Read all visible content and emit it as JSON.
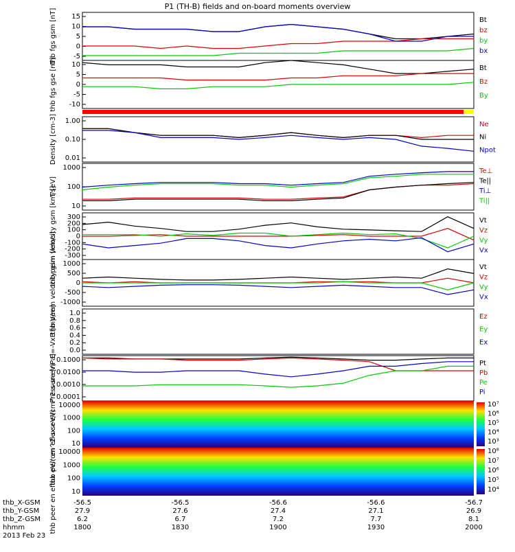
{
  "title": "P1 (TH-B) fields and on-board moments overview",
  "date": "2013 Feb 23",
  "footer": {
    "rows": [
      {
        "label": "thb_X-GSM",
        "values": [
          "-56.5",
          "-56.5",
          "-56.6",
          "-56.6",
          "-56.7"
        ]
      },
      {
        "label": "thb_Y-GSM",
        "values": [
          "27.9",
          "27.6",
          "27.4",
          "27.1",
          "26.9"
        ]
      },
      {
        "label": "thb_Z-GSM",
        "values": [
          "6.2",
          "6.7",
          "7.2",
          "7.7",
          "8.1"
        ]
      },
      {
        "label": "hhmm",
        "values": [
          "1800",
          "1830",
          "1900",
          "1930",
          "2000"
        ]
      }
    ]
  },
  "chart_data": [
    {
      "id": "fgs_gsm",
      "type": "line",
      "ylabel": "thb fgs gsm [nT]",
      "ylim": [
        -5,
        15
      ],
      "ticks": [
        "15",
        "10",
        "5",
        "0",
        "-5"
      ],
      "x": "18:00-20:00",
      "series": [
        {
          "name": "Bt",
          "color": "#000000",
          "values": [
            9,
            9,
            8,
            8,
            8,
            7,
            7,
            9,
            10,
            9,
            8,
            6,
            4,
            4,
            5,
            6
          ]
        },
        {
          "name": "bz",
          "color": "#dd0000",
          "values": [
            1,
            1,
            1,
            0,
            1,
            0,
            0,
            1,
            2,
            2,
            3,
            3,
            3,
            4,
            4,
            4
          ]
        },
        {
          "name": "by",
          "color": "#00cc00",
          "values": [
            -3,
            -3,
            -3,
            -3,
            -3,
            -3,
            -2,
            -2,
            -2,
            -2,
            -1,
            -1,
            -1,
            -1,
            -1,
            0
          ]
        },
        {
          "name": "bx",
          "color": "#0000cc",
          "values": [
            9,
            9,
            8,
            8,
            8,
            7,
            7,
            9,
            10,
            9,
            8,
            6,
            3,
            3,
            5,
            5
          ]
        }
      ]
    },
    {
      "id": "fgs_gse",
      "type": "line",
      "ylabel": "thb fgs gse [nT]",
      "ylim": [
        -12,
        10
      ],
      "ticks": [
        "10",
        "5",
        "0",
        "-5",
        "-10"
      ],
      "series": [
        {
          "name": "Bt",
          "color": "#000000",
          "values": [
            9,
            8,
            8,
            8,
            7,
            7,
            7,
            9,
            10,
            9,
            8,
            6,
            4,
            4,
            5,
            6
          ]
        },
        {
          "name": "Bz",
          "color": "#dd0000",
          "values": [
            2,
            2,
            2,
            2,
            1,
            1,
            1,
            1,
            2,
            2,
            3,
            3,
            3,
            4,
            4,
            4
          ]
        },
        {
          "name": "By",
          "color": "#00cc00",
          "values": [
            -2,
            -2,
            -2,
            -3,
            -3,
            -2,
            -2,
            -2,
            -1,
            -1,
            -1,
            -1,
            -1,
            -1,
            -1,
            0
          ]
        }
      ]
    },
    {
      "id": "density",
      "type": "line",
      "ylabel": "Density [cm-3]",
      "ylim": [
        0.01,
        1
      ],
      "log": true,
      "ticks": [
        "1.00",
        "0.10",
        "0.01"
      ],
      "series": [
        {
          "name": "Ne",
          "color": "#dd0000",
          "values": [
            0.3,
            0.3,
            0.2,
            0.15,
            0.15,
            0.15,
            0.12,
            0.15,
            0.2,
            0.15,
            0.12,
            0.15,
            0.15,
            0.12,
            0.15,
            0.15
          ]
        },
        {
          "name": "Ni",
          "color": "#000000",
          "values": [
            0.3,
            0.3,
            0.2,
            0.15,
            0.15,
            0.15,
            0.12,
            0.15,
            0.2,
            0.15,
            0.12,
            0.15,
            0.15,
            0.1,
            0.1,
            0.1
          ]
        },
        {
          "name": "Npot",
          "color": "#0000cc",
          "values": [
            0.25,
            0.25,
            0.2,
            0.12,
            0.12,
            0.12,
            0.1,
            0.12,
            0.15,
            0.12,
            0.1,
            0.12,
            0.1,
            0.05,
            0.04,
            0.03
          ]
        }
      ]
    },
    {
      "id": "temperature",
      "type": "line",
      "ylabel": "T [eV]",
      "ylim": [
        10,
        10000
      ],
      "log": true,
      "ticks": [
        "1000",
        "100",
        "10"
      ],
      "series": [
        {
          "name": "Te⊥",
          "color": "#dd0000",
          "values": [
            50,
            50,
            60,
            60,
            60,
            60,
            60,
            50,
            50,
            60,
            70,
            200,
            300,
            400,
            400,
            500
          ]
        },
        {
          "name": "Te||",
          "color": "#000000",
          "values": [
            40,
            40,
            50,
            50,
            50,
            50,
            50,
            40,
            40,
            50,
            60,
            200,
            300,
            400,
            500,
            600
          ]
        },
        {
          "name": "Ti⊥",
          "color": "#0000cc",
          "values": [
            300,
            400,
            500,
            600,
            600,
            600,
            500,
            500,
            400,
            500,
            600,
            1500,
            2000,
            2500,
            3000,
            3000
          ]
        },
        {
          "name": "Ti||",
          "color": "#00cc00",
          "values": [
            200,
            300,
            400,
            500,
            500,
            500,
            400,
            400,
            300,
            400,
            500,
            1200,
            1500,
            2000,
            2000,
            2000
          ]
        }
      ]
    },
    {
      "id": "peim_velocity",
      "type": "line",
      "ylabel": "thb peim velocity gsm [km/s]",
      "ylim": [
        -300,
        300
      ],
      "ticks": [
        "300",
        "200",
        "100",
        "0",
        "-100",
        "-200",
        "-300"
      ],
      "series": [
        {
          "name": "Vt",
          "color": "#000000",
          "values": [
            150,
            180,
            130,
            100,
            60,
            60,
            90,
            140,
            170,
            120,
            90,
            80,
            70,
            60,
            250,
            100
          ]
        },
        {
          "name": "Vz",
          "color": "#dd0000",
          "values": [
            0,
            0,
            10,
            20,
            0,
            0,
            0,
            0,
            0,
            10,
            20,
            0,
            0,
            0,
            100,
            -50
          ]
        },
        {
          "name": "Vy",
          "color": "#00cc00",
          "values": [
            20,
            20,
            20,
            0,
            30,
            10,
            40,
            40,
            0,
            20,
            40,
            20,
            30,
            -30,
            -150,
            0
          ]
        },
        {
          "name": "Vx",
          "color": "#0000cc",
          "values": [
            -100,
            -150,
            -120,
            -90,
            -30,
            -30,
            -60,
            -120,
            -150,
            -100,
            -60,
            -40,
            -60,
            -20,
            -200,
            -100
          ]
        }
      ]
    },
    {
      "id": "peem_velocity",
      "type": "line",
      "ylabel": "thb peem velocity gsm [km/s]",
      "ylim": [
        -1000,
        1000
      ],
      "ticks": [
        "1000",
        "500",
        "0",
        "-500",
        "-1000"
      ],
      "series": [
        {
          "name": "Vt",
          "color": "#000000",
          "values": [
            200,
            250,
            200,
            150,
            120,
            120,
            150,
            200,
            250,
            200,
            150,
            200,
            250,
            200,
            600,
            400
          ]
        },
        {
          "name": "Vz",
          "color": "#dd0000",
          "values": [
            50,
            0,
            50,
            0,
            0,
            0,
            0,
            0,
            0,
            50,
            50,
            50,
            0,
            0,
            200,
            0
          ]
        },
        {
          "name": "Vy",
          "color": "#00cc00",
          "values": [
            0,
            0,
            0,
            0,
            0,
            0,
            0,
            0,
            0,
            0,
            50,
            0,
            0,
            0,
            -300,
            0
          ]
        },
        {
          "name": "Vx",
          "color": "#0000cc",
          "values": [
            -150,
            -200,
            -150,
            -100,
            -80,
            -80,
            -100,
            -150,
            -200,
            -150,
            -100,
            -150,
            -200,
            -200,
            -500,
            -300
          ]
        }
      ]
    },
    {
      "id": "efield",
      "type": "line",
      "ylabel": "E=-VxB [mV/m]",
      "ylim": [
        0,
        1
      ],
      "ticks": [
        "1.0",
        "0.8",
        "0.6",
        "0.4",
        "0.2",
        "0.0"
      ],
      "series": [
        {
          "name": "Ez",
          "color": "#dd0000",
          "values": []
        },
        {
          "name": "Ey",
          "color": "#00cc00",
          "values": []
        },
        {
          "name": "Ex",
          "color": "#0000cc",
          "values": []
        }
      ]
    },
    {
      "id": "pressure",
      "type": "line",
      "ylabel": "Pressure [nPa]",
      "ylim": [
        0.0001,
        0.1
      ],
      "log": true,
      "ticks": [
        "0.1000",
        "0.0100",
        "0.0010",
        "0.0001"
      ],
      "series": [
        {
          "name": "Pt",
          "color": "#000000",
          "values": [
            0.07,
            0.07,
            0.06,
            0.06,
            0.06,
            0.06,
            0.06,
            0.07,
            0.08,
            0.07,
            0.06,
            0.05,
            0.05,
            0.06,
            0.07,
            0.07
          ]
        },
        {
          "name": "Pb",
          "color": "#dd0000",
          "values": [
            0.07,
            0.06,
            0.06,
            0.06,
            0.05,
            0.05,
            0.05,
            0.06,
            0.07,
            0.06,
            0.05,
            0.04,
            0.01,
            0.01,
            0.01,
            0.01
          ]
        },
        {
          "name": "Pe",
          "color": "#00cc00",
          "values": [
            0.001,
            0.001,
            0.001,
            0.0012,
            0.0012,
            0.0012,
            0.0012,
            0.001,
            0.0008,
            0.001,
            0.0015,
            0.005,
            0.01,
            0.01,
            0.02,
            0.02
          ]
        },
        {
          "name": "Pi",
          "color": "#0000cc",
          "values": [
            0.01,
            0.01,
            0.008,
            0.008,
            0.01,
            0.01,
            0.01,
            0.006,
            0.004,
            0.006,
            0.01,
            0.02,
            0.02,
            0.03,
            0.04,
            0.04
          ]
        }
      ]
    },
    {
      "id": "peir_eflux",
      "type": "heatmap",
      "ylabel": "thb peir en eflux eV/(cm^2-s-sr-eV)",
      "ylim": [
        10,
        20000
      ],
      "ticks": [
        "10000",
        "1000",
        "100",
        "10"
      ],
      "colorbar": [
        "10⁷",
        "10⁶",
        "10⁵",
        "10⁴",
        "10³"
      ]
    },
    {
      "id": "peer_eflux",
      "type": "heatmap",
      "ylabel": "thb peer en eflux eV/(cm^2-s-sr-eV)",
      "ylim": [
        10,
        20000
      ],
      "ticks": [
        "10000",
        "1000",
        "100",
        "10"
      ],
      "colorbar": [
        "10⁸",
        "10⁷",
        "10⁶",
        "10⁵",
        "10⁴"
      ]
    }
  ]
}
